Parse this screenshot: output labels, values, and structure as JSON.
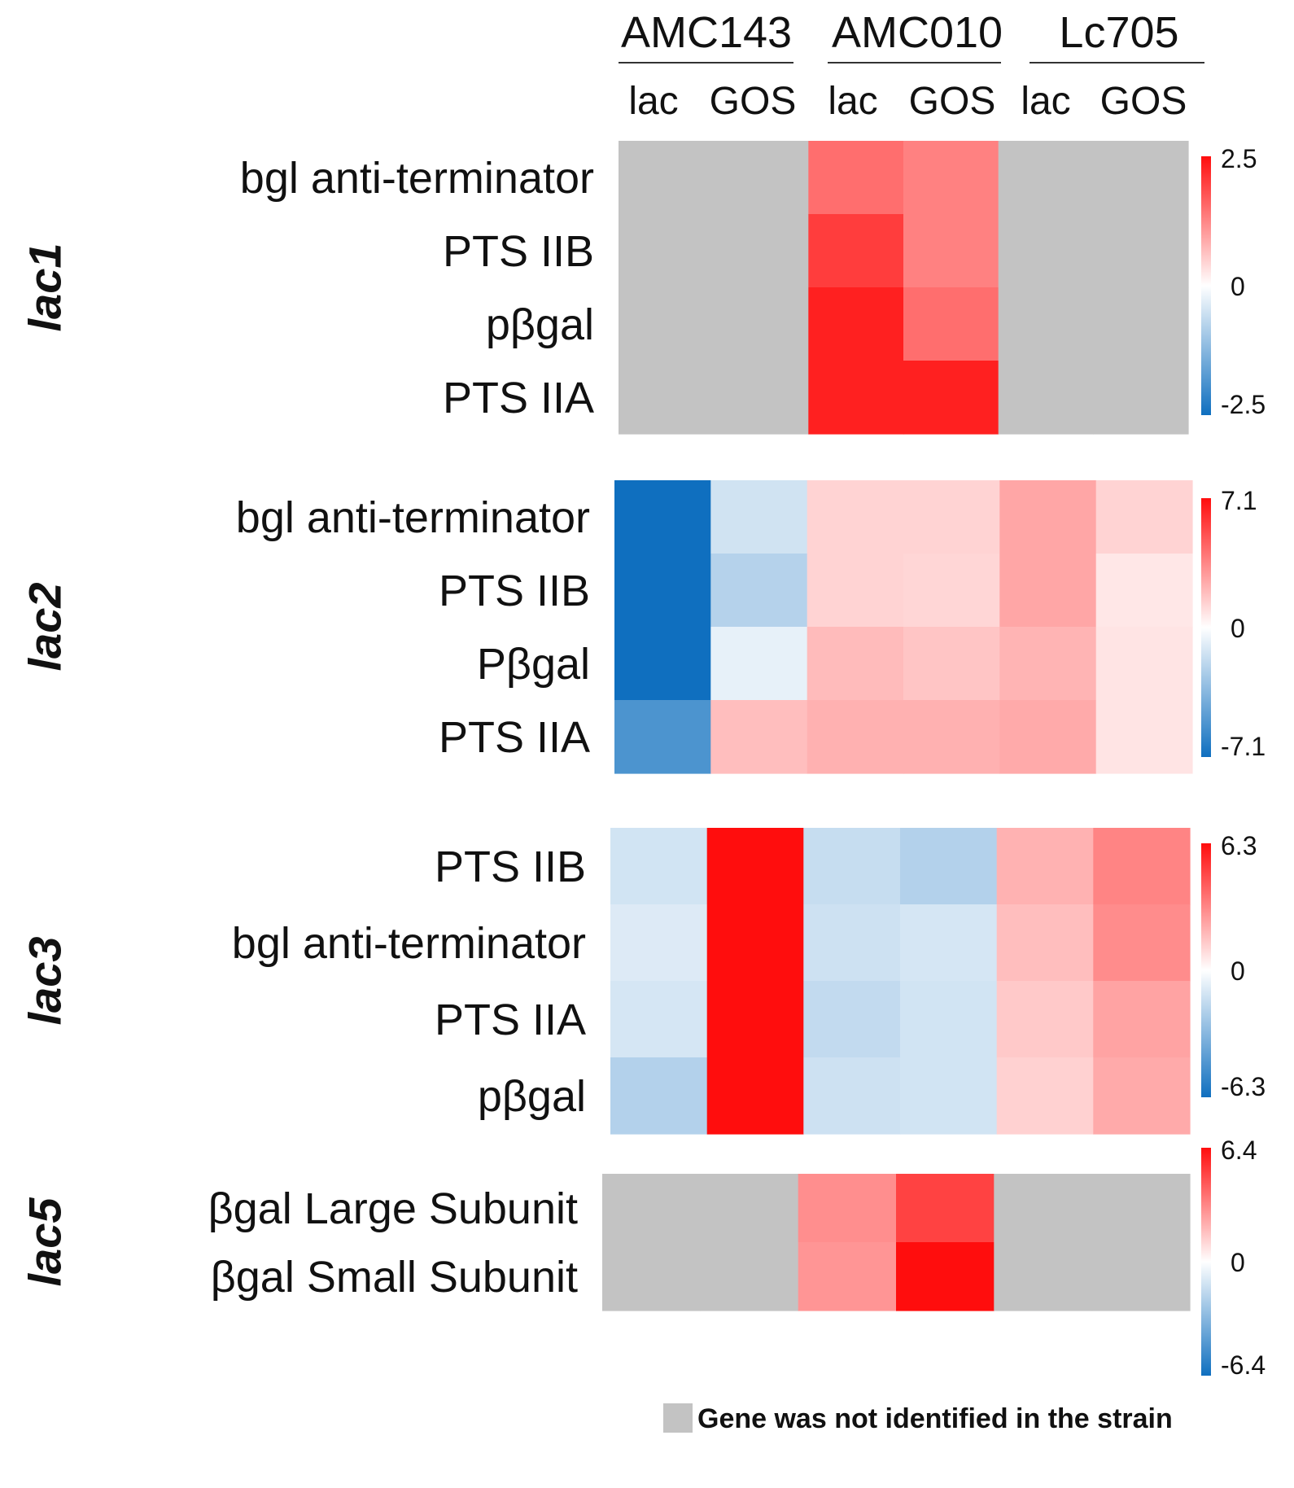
{
  "chart_data": {
    "type": "heatmap",
    "strains": [
      "AMC143",
      "AMC010",
      "Lc705"
    ],
    "substrates": [
      "lac",
      "GOS"
    ],
    "columns": [
      "AMC143 lac",
      "AMC143 GOS",
      "AMC010 lac",
      "AMC010 GOS",
      "Lc705 lac",
      "Lc705 GOS"
    ],
    "missing_color": "#c3c3c3",
    "low_color": "#0f6fbf",
    "mid_color": "#ffffff",
    "high_color": "#ff0d0d",
    "legend_note": "Gene was not identified in the strain",
    "panels": [
      {
        "cluster": "lac1",
        "scale": {
          "min_label": "-2.5",
          "mid_label": "0",
          "max_label": "2.5",
          "min": -2.5,
          "max": 2.5
        },
        "rows": [
          {
            "gene": "bgl anti-terminator",
            "values": [
              null,
              null,
              1.5,
              1.3,
              null,
              null
            ]
          },
          {
            "gene": "PTS IIB",
            "values": [
              null,
              null,
              2.0,
              1.3,
              null,
              null
            ]
          },
          {
            "gene": "pβgal",
            "values": [
              null,
              null,
              2.3,
              1.5,
              null,
              null
            ]
          },
          {
            "gene": "PTS IIA",
            "values": [
              null,
              null,
              2.3,
              2.3,
              null,
              null
            ]
          }
        ]
      },
      {
        "cluster": "lac2",
        "scale": {
          "min_label": "-7.1",
          "mid_label": "0",
          "max_label": "7.1",
          "min": -7.1,
          "max": 7.1
        },
        "rows": [
          {
            "gene": "bgl anti-terminator",
            "values": [
              -7.1,
              -1.4,
              1.3,
              1.3,
              2.6,
              1.3
            ]
          },
          {
            "gene": "PTS IIB",
            "values": [
              -7.1,
              -2.2,
              1.3,
              1.2,
              2.6,
              0.7
            ]
          },
          {
            "gene": "Pβgal",
            "values": [
              -7.1,
              -0.7,
              2.0,
              1.7,
              2.2,
              0.8
            ]
          },
          {
            "gene": "PTS IIA",
            "values": [
              -5.3,
              1.9,
              2.3,
              2.3,
              2.5,
              0.8
            ]
          }
        ]
      },
      {
        "cluster": "lac3",
        "scale": {
          "min_label": "-6.3",
          "mid_label": "0",
          "max_label": "6.3",
          "min": -6.3,
          "max": 6.3
        },
        "rows": [
          {
            "gene": "PTS IIB",
            "values": [
              -1.2,
              6.3,
              -1.5,
              -2.0,
              2.0,
              3.2
            ]
          },
          {
            "gene": "bgl anti-terminator",
            "values": [
              -0.9,
              6.3,
              -1.3,
              -1.1,
              1.7,
              3.0
            ]
          },
          {
            "gene": "PTS IIA",
            "values": [
              -1.1,
              6.3,
              -1.6,
              -1.2,
              1.4,
              2.4
            ]
          },
          {
            "gene": "pβgal",
            "values": [
              -2.0,
              6.3,
              -1.3,
              -1.2,
              1.2,
              2.2
            ]
          }
        ]
      },
      {
        "cluster": "lac5",
        "scale": {
          "min_label": "-6.4",
          "mid_label": "0",
          "max_label": "6.4",
          "min": -6.4,
          "max": 6.4
        },
        "rows": [
          {
            "gene": "βgal Large Subunit",
            "values": [
              null,
              null,
              3.0,
              5.0,
              null,
              null
            ]
          },
          {
            "gene": "βgal Small Subunit",
            "values": [
              null,
              null,
              2.8,
              6.4,
              null,
              null
            ]
          }
        ]
      }
    ]
  }
}
